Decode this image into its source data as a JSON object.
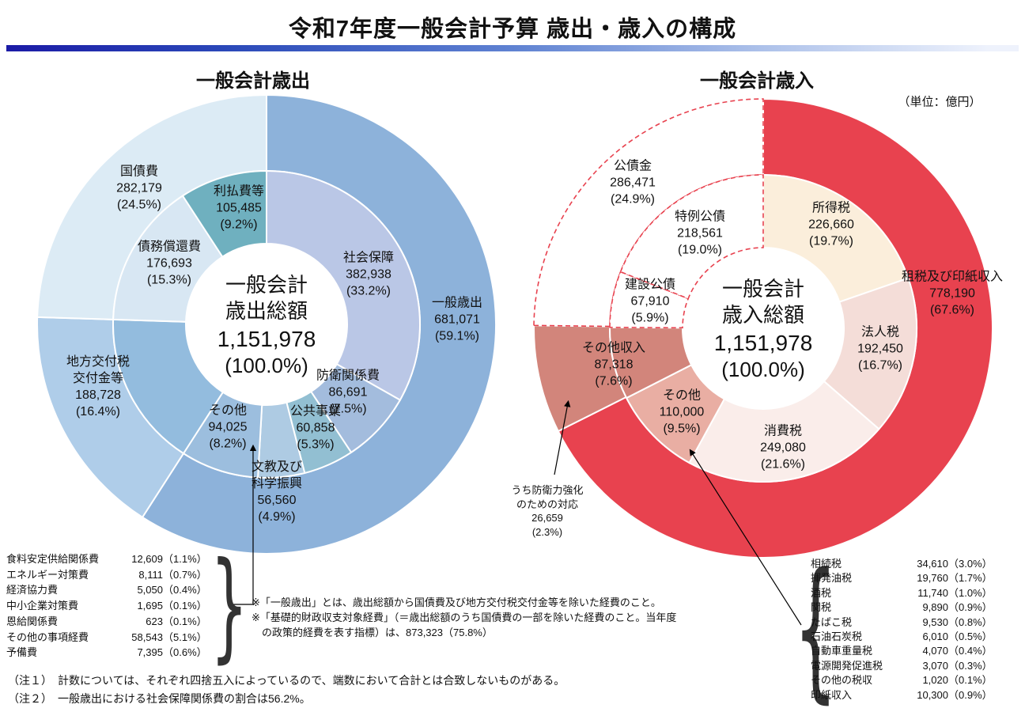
{
  "page": {
    "title": "令和7年度一般会計予算 歳出・歳入の構成",
    "unit_label": "（単位：億円）"
  },
  "chart_data": [
    {
      "type": "pie",
      "variant": "two-ring-donut",
      "id": "expenditure",
      "title": "一般会計歳出",
      "unit": "億円",
      "center": {
        "line1": "一般会計",
        "line2": "歳出総額",
        "amount": "1,151,978",
        "pct": "(100.0%)",
        "total": 1151978
      },
      "outer_ring": [
        {
          "name": "一般歳出",
          "value": 681071,
          "value_str": "681,071",
          "pct": 59.1,
          "pct_str": "(59.1%)",
          "color": "#8db2da"
        },
        {
          "name": "地方交付税交付金等",
          "name_line1": "地方交付税",
          "name_line2": "交付金等",
          "value": 188728,
          "value_str": "188,728",
          "pct": 16.4,
          "pct_str": "(16.4%)",
          "color": "#afcde9"
        },
        {
          "name": "国債費",
          "value": 282179,
          "value_str": "282,179",
          "pct": 24.5,
          "pct_str": "(24.5%)",
          "color": "#dcebf5"
        }
      ],
      "inner_ring": [
        {
          "name": "社会保障",
          "value": 382938,
          "value_str": "382,938",
          "pct": 33.2,
          "pct_str": "(33.2%)",
          "color": "#bac7e6"
        },
        {
          "name": "防衛関係費",
          "value": 86691,
          "value_str": "86,691",
          "pct": 7.5,
          "pct_str": "(7.5%)",
          "color": "#a3bcdd"
        },
        {
          "name": "公共事業",
          "value": 60858,
          "value_str": "60,858",
          "pct": 5.3,
          "pct_str": "(5.3%)",
          "color": "#92bfd2"
        },
        {
          "name": "文教及び科学振興",
          "name_line1": "文教及び",
          "name_line2": "科学振興",
          "value": 56560,
          "value_str": "56,560",
          "pct": 4.9,
          "pct_str": "(4.9%)",
          "color": "#aecbe3"
        },
        {
          "name": "その他",
          "value": 94025,
          "value_str": "94,025",
          "pct": 8.2,
          "pct_str": "(8.2%)",
          "color": "#9cbede"
        },
        {
          "name": "地方交付税交付金等",
          "value": 188728,
          "value_str": "188,728",
          "pct": 16.4,
          "pct_str": "(16.4%)",
          "color": "#93bcde"
        },
        {
          "name": "債務償還費",
          "value": 176693,
          "value_str": "176,693",
          "pct": 15.3,
          "pct_str": "(15.3%)",
          "color": "#d8e7f3"
        },
        {
          "name": "利払費等",
          "value": 105485,
          "value_str": "105,485",
          "pct": 9.2,
          "pct_str": "(9.2%)",
          "color": "#6fb0bf"
        }
      ],
      "breakdown_rows": [
        {
          "label": "食料安定供給関係費",
          "value": "12,609",
          "pct": "（1.1%）"
        },
        {
          "label": "エネルギー対策費",
          "value": "8,111",
          "pct": "（0.7%）"
        },
        {
          "label": "経済協力費",
          "value": "5,050",
          "pct": "（0.4%）"
        },
        {
          "label": "中小企業対策費",
          "value": "1,695",
          "pct": "（0.1%）"
        },
        {
          "label": "恩給関係費",
          "value": "623",
          "pct": "（0.1%）"
        },
        {
          "label": "その他の事項経費",
          "value": "58,543",
          "pct": "（5.1%）"
        },
        {
          "label": "予備費",
          "value": "7,395",
          "pct": "（0.6%）"
        }
      ]
    },
    {
      "type": "pie",
      "variant": "two-ring-donut",
      "id": "revenue",
      "title": "一般会計歳入",
      "unit": "億円",
      "center": {
        "line1": "一般会計",
        "line2": "歳入総額",
        "amount": "1,151,978",
        "pct": "(100.0%)",
        "total": 1151978
      },
      "outer_ring": [
        {
          "name": "租税及び印紙収入",
          "value": 778190,
          "value_str": "778,190",
          "pct": 67.6,
          "pct_str": "(67.6%)",
          "color": "#e8424f"
        },
        {
          "name": "その他収入",
          "value": 87318,
          "value_str": "87,318",
          "pct": 7.6,
          "pct_str": "(7.6%)",
          "color": "#d2857b"
        },
        {
          "name": "公債金",
          "value": 286471,
          "value_str": "286,471",
          "pct": 24.9,
          "pct_str": "(24.9%)",
          "color": "#ffffff",
          "dashed": true
        }
      ],
      "inner_ring": [
        {
          "name": "所得税",
          "value": 226660,
          "value_str": "226,660",
          "pct": 19.7,
          "pct_str": "(19.7%)",
          "color": "#fbeedb"
        },
        {
          "name": "法人税",
          "value": 192450,
          "value_str": "192,450",
          "pct": 16.7,
          "pct_str": "(16.7%)",
          "color": "#f4ddd8"
        },
        {
          "name": "消費税",
          "value": 249080,
          "value_str": "249,080",
          "pct": 21.6,
          "pct_str": "(21.6%)",
          "color": "#faedea"
        },
        {
          "name": "その他",
          "value": 110000,
          "value_str": "110,000",
          "pct": 9.5,
          "pct_str": "(9.5%)",
          "color": "#e9aea3"
        },
        {
          "name": "その他収入",
          "value": 87318,
          "value_str": "87,318",
          "pct": 7.6,
          "pct_str": "(7.6%)",
          "color": "#d2857b"
        },
        {
          "name": "建設公債",
          "value": 67910,
          "value_str": "67,910",
          "pct": 5.9,
          "pct_str": "(5.9%)",
          "color": "#ffffff",
          "dashed": true
        },
        {
          "name": "特例公債",
          "value": 218561,
          "value_str": "218,561",
          "pct": 19.0,
          "pct_str": "(19.0%)",
          "color": "#ffffff",
          "dashed": true
        }
      ],
      "annotation": {
        "line1": "うち防衛力強化",
        "line2": "のための対応",
        "value": 26659,
        "value_str": "26,659",
        "pct": 2.3,
        "pct_str": "(2.3%)"
      },
      "breakdown_rows": [
        {
          "label": "相続税",
          "value": "34,610",
          "pct": "（3.0%）"
        },
        {
          "label": "揮発油税",
          "value": "19,760",
          "pct": "（1.7%）"
        },
        {
          "label": "酒税",
          "value": "11,740",
          "pct": "（1.0%）"
        },
        {
          "label": "関税",
          "value": "9,890",
          "pct": "（0.9%）"
        },
        {
          "label": "たばこ税",
          "value": "9,530",
          "pct": "（0.8%）"
        },
        {
          "label": "石油石炭税",
          "value": "6,010",
          "pct": "（0.5%）"
        },
        {
          "label": "自動車重量税",
          "value": "4,070",
          "pct": "（0.4%）"
        },
        {
          "label": "電源開発促進税",
          "value": "3,070",
          "pct": "（0.3%）"
        },
        {
          "label": "その他の税収",
          "value": "1,020",
          "pct": "（0.1%）"
        },
        {
          "label": "印紙収入",
          "value": "10,300",
          "pct": "（0.9%）"
        }
      ]
    }
  ],
  "notes": {
    "note_a1": "※「一般歳出」とは、歳出総額から国債費及び地方交付税交付金等を除いた経費のこと。",
    "note_a2": "※「基礎的財政収支対象経費」（＝歳出総額のうち国債費の一部を除いた経費のこと。当年度",
    "note_a3": "　の政策的経費を表す指標）は、873,323（75.8%）",
    "note_b1": "（注１）　計数については、それぞれ四捨五入によっているので、端数において合計とは合致しないものがある。",
    "note_b2": "（注２）　一般歳出における社会保障関係費の割合は56.2%。"
  }
}
